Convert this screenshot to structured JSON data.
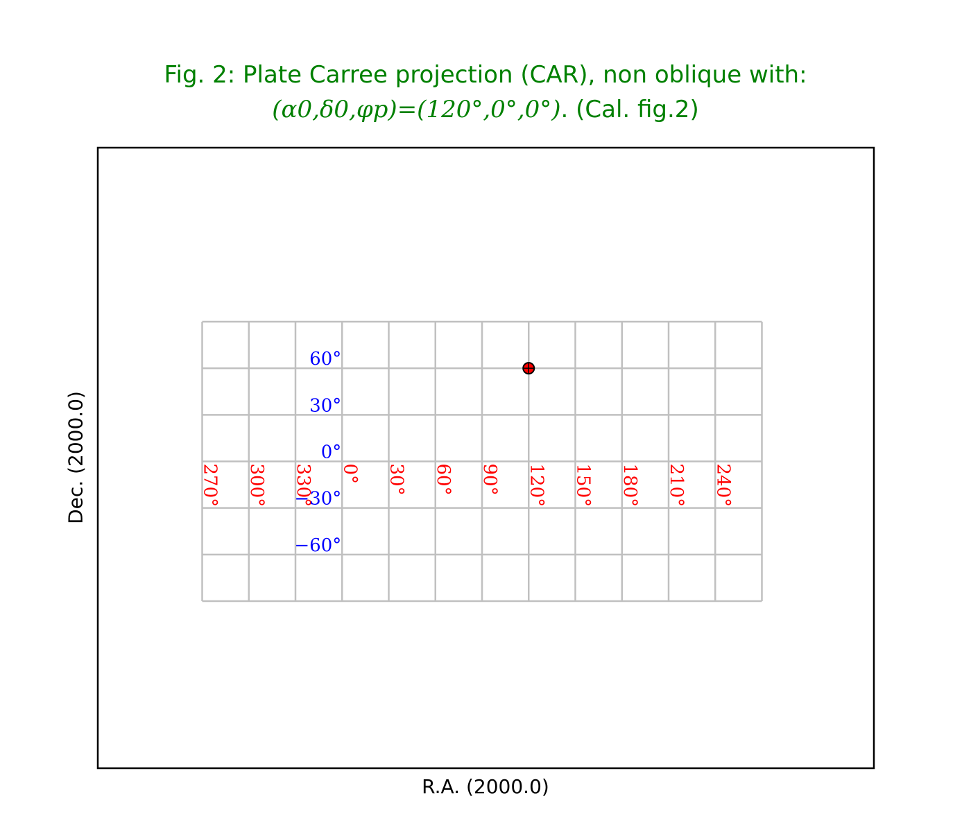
{
  "chart_data": {
    "type": "scatter",
    "title_line1": "Fig. 2: Plate Carree projection (CAR), non oblique with:",
    "title_line2_math": "(α0,δ0,φp)=(120°,0°,0°)",
    "title_line2_text": ". (Cal. fig.2)",
    "xlabel": "R.A. (2000.0)",
    "ylabel": "Dec. (2000.0)",
    "projection": "CAR",
    "crval": [
      120,
      0
    ],
    "lonpole": 0,
    "xlim": [
      -90,
      270
    ],
    "ylim": [
      -90,
      90
    ],
    "grid": true,
    "grid_color": "#c0c0c0",
    "ra_meridians": [
      270,
      300,
      330,
      0,
      30,
      60,
      90,
      120,
      150,
      180,
      210,
      240,
      270,
      300
    ],
    "dec_parallels": [
      -90,
      -60,
      -30,
      0,
      30,
      60,
      90
    ],
    "ra_tick_labels": [
      {
        "ra": 330,
        "label": "330°"
      },
      {
        "ra": 0,
        "label": "0°"
      },
      {
        "ra": 30,
        "label": "30°"
      },
      {
        "ra": 60,
        "label": "60°"
      },
      {
        "ra": 90,
        "label": "90°"
      },
      {
        "ra": 120,
        "label": "120°"
      },
      {
        "ra": 150,
        "label": "150°"
      },
      {
        "ra": 180,
        "label": "180°"
      },
      {
        "ra": 210,
        "label": "210°"
      },
      {
        "ra": 240,
        "label": "240°"
      },
      {
        "ra": 270,
        "label": "270°"
      },
      {
        "ra": 300,
        "label": "300°"
      }
    ],
    "dec_tick_labels": [
      {
        "dec": 60,
        "label": "60°"
      },
      {
        "dec": 30,
        "label": "30°"
      },
      {
        "dec": 0,
        "label": "0°"
      },
      {
        "dec": -30,
        "label": "−30°"
      },
      {
        "dec": -60,
        "label": "−60°"
      }
    ],
    "ra_label_color": "#ff0000",
    "dec_label_color": "#0000ff",
    "title_color": "#008000",
    "marker": {
      "ra": 120,
      "dec": 60,
      "color": "#ff0000"
    }
  }
}
